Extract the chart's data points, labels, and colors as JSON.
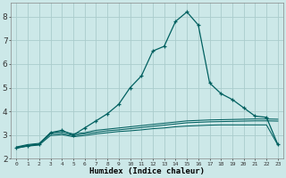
{
  "xlabel": "Humidex (Indice chaleur)",
  "bg_color": "#cce8e8",
  "grid_color": "#aacccc",
  "line_color": "#006060",
  "xlim": [
    -0.5,
    23.5
  ],
  "ylim": [
    2.0,
    8.6
  ],
  "yticks": [
    2,
    3,
    4,
    5,
    6,
    7,
    8
  ],
  "xticks": [
    0,
    1,
    2,
    3,
    4,
    5,
    6,
    7,
    8,
    9,
    10,
    11,
    12,
    13,
    14,
    15,
    16,
    17,
    18,
    19,
    20,
    21,
    22,
    23
  ],
  "series": [
    {
      "x": [
        0,
        1,
        2,
        3,
        4,
        5,
        6,
        7,
        8,
        9,
        10,
        11,
        12,
        13,
        14,
        15,
        16,
        17,
        18,
        19,
        20,
        21,
        22,
        23
      ],
      "y": [
        2.5,
        2.6,
        2.65,
        3.1,
        3.15,
        3.05,
        3.1,
        3.2,
        3.25,
        3.3,
        3.35,
        3.4,
        3.45,
        3.5,
        3.55,
        3.6,
        3.62,
        3.64,
        3.65,
        3.66,
        3.67,
        3.68,
        3.68,
        3.67
      ],
      "marker": false
    },
    {
      "x": [
        0,
        1,
        2,
        3,
        4,
        5,
        6,
        7,
        8,
        9,
        10,
        11,
        12,
        13,
        14,
        15,
        16,
        17,
        18,
        19,
        20,
        21,
        22,
        23
      ],
      "y": [
        2.48,
        2.57,
        2.62,
        3.05,
        3.08,
        2.98,
        3.05,
        3.12,
        3.18,
        3.22,
        3.27,
        3.32,
        3.37,
        3.42,
        3.47,
        3.52,
        3.54,
        3.56,
        3.57,
        3.58,
        3.59,
        3.6,
        3.6,
        3.59
      ],
      "marker": false
    },
    {
      "x": [
        0,
        1,
        2,
        3,
        4,
        5,
        6,
        7,
        8,
        9,
        10,
        11,
        12,
        13,
        14,
        15,
        16,
        17,
        18,
        19,
        20,
        21,
        22,
        23
      ],
      "y": [
        2.45,
        2.53,
        2.58,
        2.98,
        3.02,
        2.93,
        2.98,
        3.05,
        3.1,
        3.15,
        3.18,
        3.22,
        3.27,
        3.3,
        3.35,
        3.38,
        3.4,
        3.42,
        3.43,
        3.43,
        3.43,
        3.43,
        3.43,
        2.58
      ],
      "marker": false
    },
    {
      "x": [
        0,
        1,
        2,
        3,
        4,
        5,
        6,
        7,
        8,
        9,
        10,
        11,
        12,
        13,
        14,
        15,
        16,
        17,
        18,
        19,
        20,
        21,
        22,
        23
      ],
      "y": [
        2.45,
        2.55,
        2.6,
        3.1,
        3.2,
        3.0,
        3.3,
        3.6,
        3.9,
        4.3,
        5.0,
        5.5,
        6.55,
        6.75,
        7.8,
        8.2,
        7.65,
        5.2,
        4.75,
        4.5,
        4.15,
        3.8,
        3.75,
        2.6
      ],
      "marker": true
    }
  ]
}
